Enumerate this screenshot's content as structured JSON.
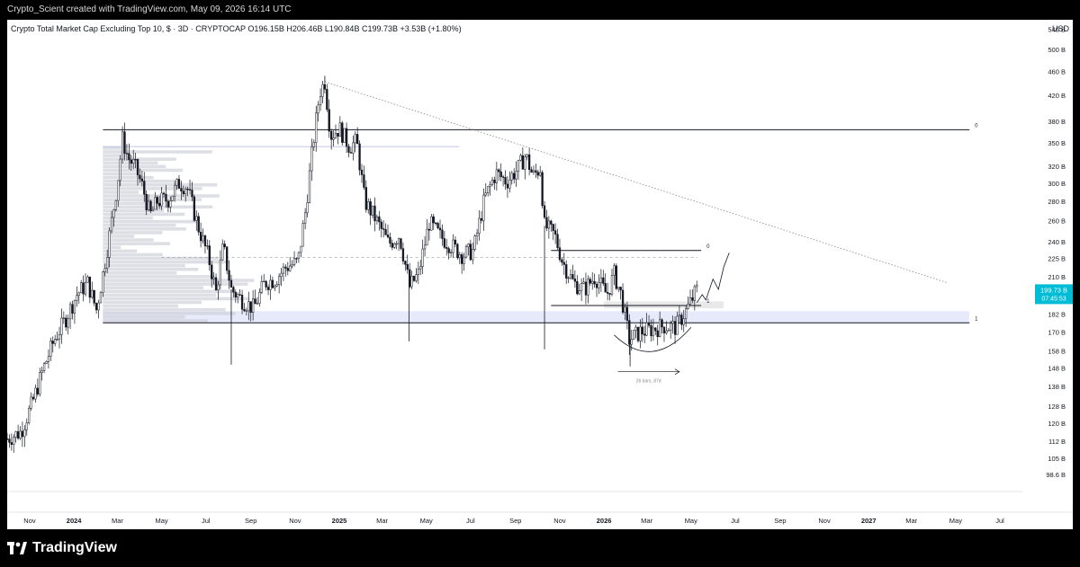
{
  "header": {
    "attribution": "Crypto_Scient created with TradingView.com, May 09, 2026 16:14 UTC"
  },
  "legend": {
    "symbol": "Crypto Total Market Cap Excluding Top 10, $ · 3D · CRYPTOCAP",
    "open": "O196.15B",
    "high": "H206.46B",
    "low": "L190.84B",
    "close": "C199.73B",
    "change": "+3.53B (+1.80%)"
  },
  "currency": "USD",
  "footer": {
    "brand": "TradingView"
  },
  "colors": {
    "candles": "#131722",
    "volume_profile": "#cfd2d8",
    "zone": "#e4e8fb",
    "price_label": "#00bcd4",
    "annotation": "#b0b0b0"
  },
  "chart_data": {
    "type": "candlestick",
    "y_scale": "log",
    "ylim": [
      94,
      560
    ],
    "xlim": [
      "2023-10-01",
      "2027-08-01"
    ],
    "y_ticks": [
      "540 B",
      "500 B",
      "460 B",
      "420 B",
      "380 B",
      "350 B",
      "320 B",
      "300 B",
      "280 B",
      "260 B",
      "240 B",
      "225 B",
      "210 B",
      "182 B",
      "170 B",
      "158 B",
      "148 B",
      "138 B",
      "128 B",
      "120 B",
      "112 B",
      "105 B",
      "98.6 B"
    ],
    "y_tick_values": [
      540,
      500,
      460,
      420,
      380,
      350,
      320,
      300,
      280,
      260,
      240,
      225,
      210,
      182,
      170,
      158,
      148,
      138,
      128,
      120,
      112,
      105,
      98.6
    ],
    "x_ticks": [
      "Nov",
      "2024",
      "Mar",
      "May",
      "Jul",
      "Sep",
      "Nov",
      "2025",
      "Mar",
      "May",
      "Jul",
      "Sep",
      "Nov",
      "2026",
      "Mar",
      "May",
      "Jul",
      "Sep",
      "Nov",
      "2027",
      "Mar",
      "May",
      "Jul"
    ],
    "x_tick_dates": [
      "2023-11-01",
      "2024-01-01",
      "2024-03-01",
      "2024-05-01",
      "2024-07-01",
      "2024-09-01",
      "2024-11-01",
      "2025-01-01",
      "2025-03-01",
      "2025-05-01",
      "2025-07-01",
      "2025-09-01",
      "2025-11-01",
      "2026-01-01",
      "2026-03-01",
      "2026-05-01",
      "2026-07-01",
      "2026-09-01",
      "2026-11-01",
      "2027-01-01",
      "2027-03-01",
      "2027-05-01",
      "2027-07-01"
    ],
    "bold_ticks": [
      "2024",
      "2025",
      "2026",
      "2027"
    ],
    "price_series": [
      [
        "2023-10-01",
        113
      ],
      [
        "2023-10-20",
        116
      ],
      [
        "2023-11-05",
        130
      ],
      [
        "2023-11-20",
        148
      ],
      [
        "2023-12-05",
        165
      ],
      [
        "2023-12-20",
        178
      ],
      [
        "2024-01-05",
        196
      ],
      [
        "2024-01-20",
        205
      ],
      [
        "2024-02-01",
        185
      ],
      [
        "2024-02-10",
        212
      ],
      [
        "2024-02-20",
        250
      ],
      [
        "2024-03-01",
        300
      ],
      [
        "2024-03-08",
        355
      ],
      [
        "2024-03-16",
        330
      ],
      [
        "2024-03-25",
        320
      ],
      [
        "2024-04-05",
        295
      ],
      [
        "2024-04-15",
        265
      ],
      [
        "2024-04-25",
        280
      ],
      [
        "2024-05-10",
        282
      ],
      [
        "2024-05-25",
        300
      ],
      [
        "2024-06-05",
        296
      ],
      [
        "2024-06-20",
        255
      ],
      [
        "2024-07-05",
        225
      ],
      [
        "2024-07-15",
        198
      ],
      [
        "2024-07-25",
        236
      ],
      [
        "2024-08-05",
        200
      ],
      [
        "2024-08-20",
        192
      ],
      [
        "2024-09-05",
        186
      ],
      [
        "2024-09-20",
        205
      ],
      [
        "2024-10-05",
        208
      ],
      [
        "2024-10-20",
        218
      ],
      [
        "2024-11-05",
        222
      ],
      [
        "2024-11-15",
        268
      ],
      [
        "2024-11-25",
        342
      ],
      [
        "2024-12-05",
        425
      ],
      [
        "2024-12-12",
        442
      ],
      [
        "2024-12-20",
        360
      ],
      [
        "2025-01-01",
        370
      ],
      [
        "2025-01-15",
        345
      ],
      [
        "2025-01-25",
        352
      ],
      [
        "2025-02-05",
        280
      ],
      [
        "2025-02-20",
        262
      ],
      [
        "2025-03-10",
        238
      ],
      [
        "2025-03-25",
        246
      ],
      [
        "2025-04-08",
        202
      ],
      [
        "2025-04-20",
        212
      ],
      [
        "2025-05-05",
        258
      ],
      [
        "2025-05-20",
        245
      ],
      [
        "2025-06-05",
        236
      ],
      [
        "2025-06-20",
        228
      ],
      [
        "2025-07-05",
        232
      ],
      [
        "2025-07-20",
        282
      ],
      [
        "2025-08-05",
        312
      ],
      [
        "2025-08-20",
        302
      ],
      [
        "2025-09-05",
        318
      ],
      [
        "2025-09-15",
        334
      ],
      [
        "2025-09-25",
        308
      ],
      [
        "2025-10-05",
        318
      ],
      [
        "2025-10-11",
        255
      ],
      [
        "2025-10-25",
        246
      ],
      [
        "2025-11-05",
        222
      ],
      [
        "2025-11-20",
        205
      ],
      [
        "2025-12-05",
        200
      ],
      [
        "2025-12-20",
        210
      ],
      [
        "2026-01-05",
        196
      ],
      [
        "2026-01-15",
        212
      ],
      [
        "2026-01-25",
        195
      ],
      [
        "2026-02-05",
        165
      ],
      [
        "2026-02-20",
        170
      ],
      [
        "2026-03-10",
        172
      ],
      [
        "2026-03-25",
        174
      ],
      [
        "2026-04-10",
        173
      ],
      [
        "2026-04-25",
        185
      ],
      [
        "2026-05-09",
        199.73
      ]
    ],
    "last_price_label": "199.73 B",
    "countdown": "07:45:53",
    "horizontal_levels": [
      {
        "value": 368,
        "from": "2024-02-10",
        "to": "2027-05-20",
        "label": "0"
      },
      {
        "value": 176,
        "from": "2024-02-10",
        "to": "2027-05-20",
        "label": "1"
      },
      {
        "value": 232,
        "from": "2025-10-20",
        "to": "2026-05-15",
        "label": "0"
      },
      {
        "value": 188,
        "from": "2025-10-20",
        "to": "2026-05-15",
        "label": "1"
      }
    ],
    "zones": [
      {
        "from_value": 176,
        "to_value": 184,
        "from": "2024-02-10",
        "to": "2027-05-20"
      },
      {
        "from_value": 186,
        "to_value": 191,
        "from": "2026-01-01",
        "to": "2026-06-15"
      }
    ],
    "trendline": {
      "from": [
        "2024-12-12",
        442
      ],
      "to": [
        "2027-04-20",
        205
      ]
    },
    "annotation_text": "26 bars, 87d"
  }
}
